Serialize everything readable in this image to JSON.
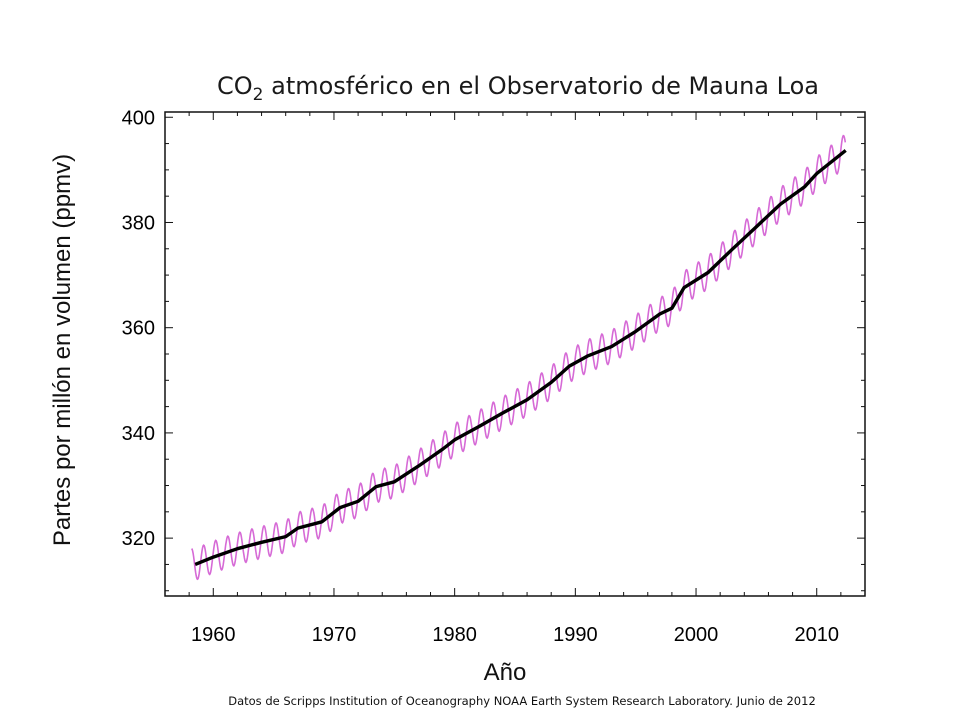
{
  "chart_data": {
    "type": "line",
    "title": {
      "pre": "CO",
      "sub": "2",
      "post": " atmosférico en el Observatorio de Mauna Loa"
    },
    "xlabel": "Año",
    "ylabel": "Partes por millón en volumen (ppmv)",
    "source": "Datos de Scripps Institution of Oceanography NOAA Earth System Research Laboratory. Junio de 2012",
    "xlim": [
      1956,
      2014
    ],
    "ylim": [
      309,
      401
    ],
    "x_ticks": [
      1960,
      1970,
      1980,
      1990,
      2000,
      2010
    ],
    "y_ticks": [
      320,
      340,
      360,
      380,
      400
    ],
    "grid": false,
    "series": [
      {
        "role": "monthly",
        "color": "#d66ad6",
        "seasonal_amplitude_ppmv": 3.0,
        "x_range": [
          1958.2,
          2012.4
        ]
      },
      {
        "role": "annual",
        "color": "#000000",
        "x": [
          1958.5,
          1960,
          1962,
          1964,
          1966,
          1967,
          1969,
          1970.5,
          1972,
          1973.5,
          1975,
          1977,
          1979,
          1980,
          1982,
          1984,
          1986,
          1988,
          1989.5,
          1991,
          1993,
          1995,
          1997,
          1998,
          1999,
          2001,
          2003,
          2005,
          2007,
          2009,
          2010,
          2012.4
        ],
        "values": [
          315.0,
          316.4,
          318.0,
          319.2,
          320.3,
          321.9,
          323.1,
          325.8,
          327.0,
          329.8,
          330.7,
          333.7,
          336.9,
          338.7,
          341.2,
          343.8,
          346.3,
          349.6,
          352.7,
          354.6,
          356.4,
          359.3,
          362.6,
          363.7,
          367.6,
          370.5,
          374.9,
          379.2,
          383.5,
          386.8,
          389.3,
          393.7
        ]
      }
    ]
  }
}
